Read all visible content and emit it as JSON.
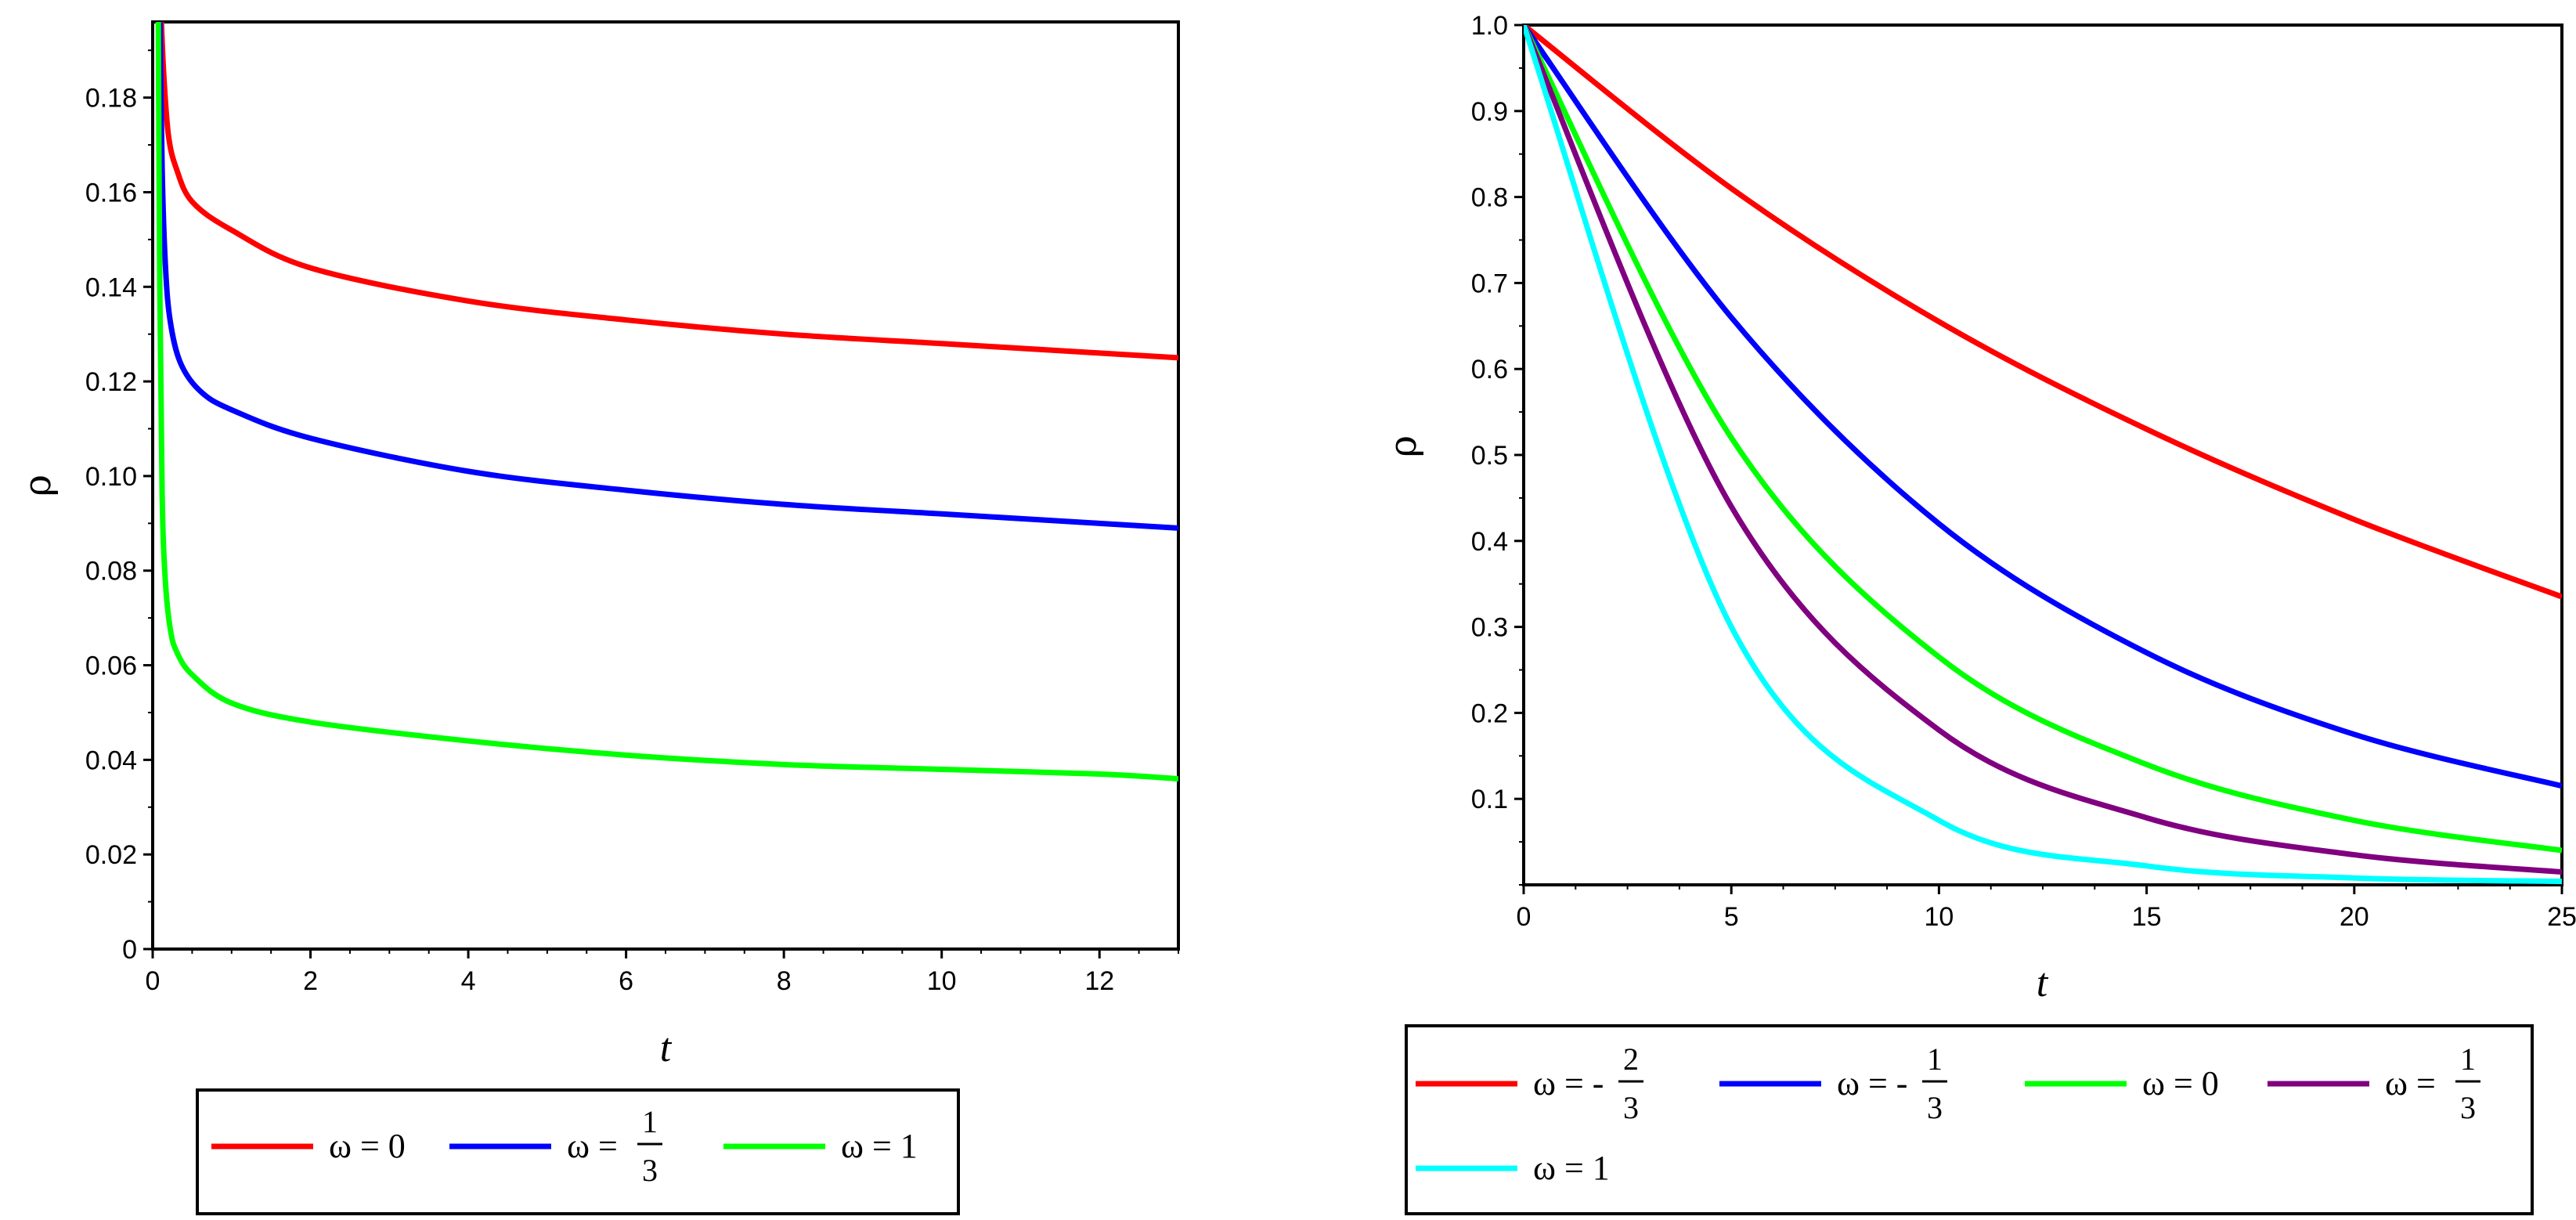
{
  "chart_data": [
    {
      "type": "line",
      "xlabel": "t",
      "ylabel": "ρ",
      "xlim": [
        0,
        13
      ],
      "ylim": [
        0,
        0.196
      ],
      "xticks": [
        0,
        2,
        4,
        6,
        8,
        10,
        12
      ],
      "xtick_labels": [
        "0",
        "2",
        "4",
        "6",
        "8",
        "10",
        "12"
      ],
      "yticks": [
        0,
        0.02,
        0.04,
        0.06,
        0.08,
        0.1,
        0.12,
        0.14,
        0.16,
        0.18
      ],
      "ytick_labels": [
        "0",
        "0.02",
        "0.04",
        "0.06",
        "0.08",
        "0.10",
        "0.12",
        "0.14",
        "0.16",
        "0.18"
      ],
      "legend_position": "bottom",
      "series": [
        {
          "name": "ω = 0",
          "color": "#ff0000",
          "x": [
            0.1,
            0.14,
            0.2,
            0.3,
            0.5,
            1,
            2,
            4,
            6,
            8,
            10,
            12,
            13
          ],
          "y": [
            0.2,
            0.185,
            0.172,
            0.165,
            0.158,
            0.152,
            0.144,
            0.137,
            0.133,
            0.13,
            0.128,
            0.126,
            0.125
          ]
        },
        {
          "name": "ω = 1/3",
          "color": "#0000ff",
          "x": [
            0.09,
            0.12,
            0.16,
            0.22,
            0.35,
            0.6,
            1,
            2,
            4,
            6,
            8,
            10,
            12,
            13
          ],
          "y": [
            0.2,
            0.165,
            0.145,
            0.133,
            0.124,
            0.118,
            0.114,
            0.108,
            0.101,
            0.097,
            0.094,
            0.092,
            0.09,
            0.089
          ]
        },
        {
          "name": "ω = 1",
          "color": "#00ff00",
          "x": [
            0.07,
            0.09,
            0.12,
            0.16,
            0.22,
            0.3,
            0.5,
            1,
            2,
            4,
            6,
            8,
            10,
            12,
            13
          ],
          "y": [
            0.2,
            0.14,
            0.096,
            0.078,
            0.068,
            0.063,
            0.058,
            0.052,
            0.048,
            0.044,
            0.041,
            0.039,
            0.038,
            0.037,
            0.036
          ]
        }
      ],
      "legend": [
        {
          "label": "ω = 0",
          "color": "#ff0000"
        },
        {
          "label": "ω = ",
          "num": "1",
          "den": "3",
          "color": "#0000ff"
        },
        {
          "label": "ω = 1",
          "color": "#00ff00"
        }
      ]
    },
    {
      "type": "line",
      "xlabel": "t",
      "ylabel": "ρ",
      "xlim": [
        0,
        25
      ],
      "ylim": [
        0,
        1.0
      ],
      "xticks": [
        0,
        5,
        10,
        15,
        20,
        25
      ],
      "xtick_labels": [
        "0",
        "5",
        "10",
        "15",
        "20",
        "25"
      ],
      "yticks": [
        0.1,
        0.2,
        0.3,
        0.4,
        0.5,
        0.6,
        0.7,
        0.8,
        0.9,
        1.0
      ],
      "ytick_labels": [
        "0.1",
        "0.2",
        "0.3",
        "0.4",
        "0.5",
        "0.6",
        "0.7",
        "0.8",
        "0.9",
        "1.0"
      ],
      "legend_position": "bottom",
      "series": [
        {
          "name": "ω = -2/3",
          "color": "#ff0000",
          "x": [
            0,
            5,
            10,
            15,
            20,
            25
          ],
          "y": [
            1.0,
            0.81,
            0.655,
            0.53,
            0.425,
            0.335
          ]
        },
        {
          "name": "ω = -1/3",
          "color": "#0000ff",
          "x": [
            0,
            5,
            10,
            15,
            20,
            25
          ],
          "y": [
            1.0,
            0.66,
            0.42,
            0.27,
            0.175,
            0.115
          ]
        },
        {
          "name": "ω = 0",
          "color": "#00ff00",
          "x": [
            0,
            5,
            10,
            15,
            20,
            25
          ],
          "y": [
            1.0,
            0.52,
            0.265,
            0.14,
            0.075,
            0.04
          ]
        },
        {
          "name": "ω = 1/3",
          "color": "#800080",
          "x": [
            0,
            5,
            10,
            15,
            20,
            25
          ],
          "y": [
            1.0,
            0.44,
            0.18,
            0.078,
            0.035,
            0.015
          ]
        },
        {
          "name": "ω = 1",
          "color": "#00ffff",
          "x": [
            0,
            5,
            10,
            15,
            20,
            25
          ],
          "y": [
            1.0,
            0.3,
            0.075,
            0.022,
            0.008,
            0.004
          ]
        }
      ],
      "legend": [
        {
          "label": "ω = -",
          "num": "2",
          "den": "3",
          "color": "#ff0000"
        },
        {
          "label": "ω = -",
          "num": "1",
          "den": "3",
          "color": "#0000ff"
        },
        {
          "label": "ω = 0",
          "color": "#00ff00"
        },
        {
          "label": "ω = ",
          "num": "1",
          "den": "3",
          "color": "#800080"
        },
        {
          "label": "ω = 1",
          "color": "#00ffff"
        }
      ]
    }
  ]
}
